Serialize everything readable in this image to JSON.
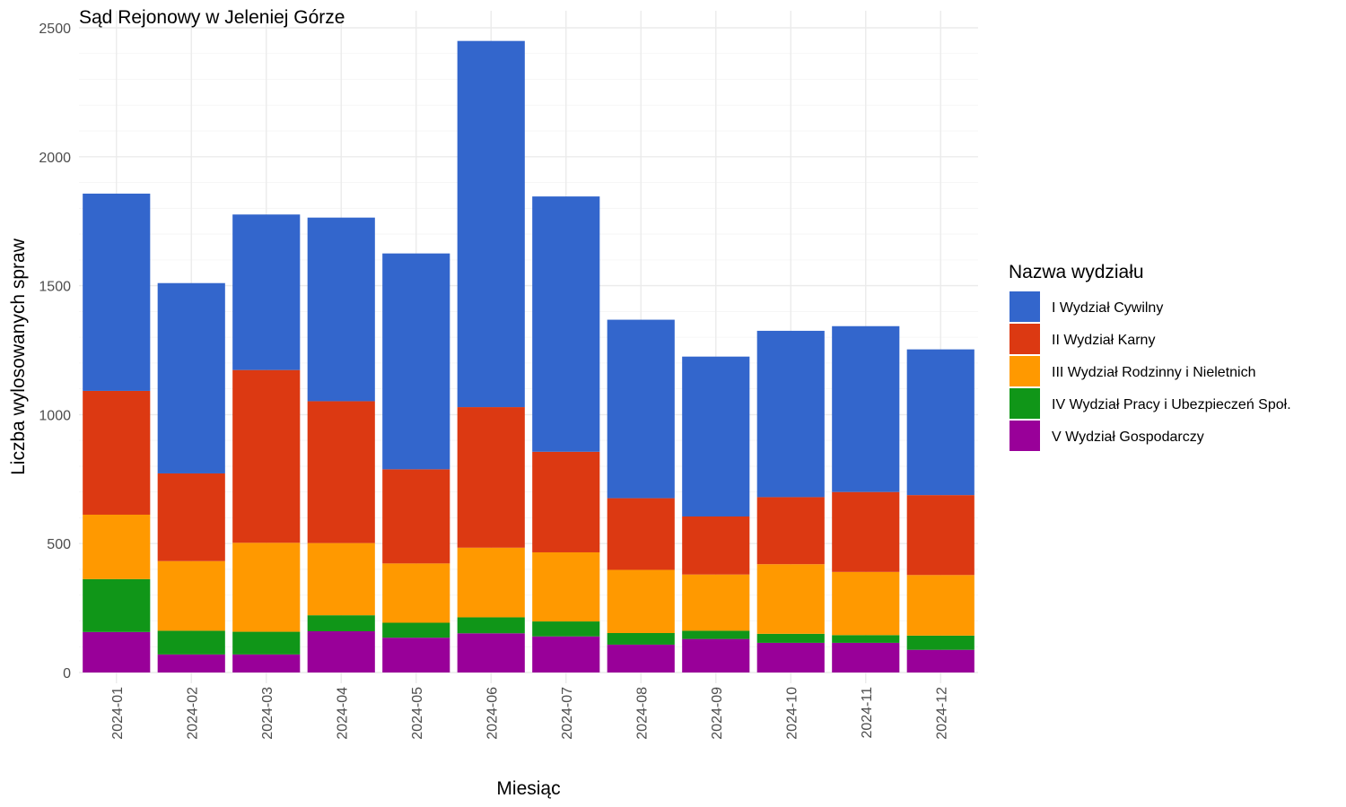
{
  "chart_data": {
    "type": "bar",
    "stacked": true,
    "title": "Sąd Rejonowy w Jeleniej Górze",
    "xlabel": "Miesiąc",
    "ylabel": "Liczba wylosowanych spraw",
    "ylim": [
      0,
      2500
    ],
    "yticks": [
      "0",
      "500",
      "1000",
      "1500",
      "2000",
      "2500"
    ],
    "grid": true,
    "legend_position": "right",
    "legend_title": "Nazwa wydziału",
    "categories": [
      "2024-01",
      "2024-02",
      "2024-03",
      "2024-04",
      "2024-05",
      "2024-06",
      "2024-07",
      "2024-08",
      "2024-09",
      "2024-10",
      "2024-11",
      "2024-12"
    ],
    "series": [
      {
        "name": "I Wydział Cywilny",
        "color": "#3366CC",
        "values": [
          765,
          738,
          603,
          712,
          837,
          1420,
          990,
          692,
          620,
          645,
          643,
          565
        ]
      },
      {
        "name": "II Wydział Karny",
        "color": "#DC3912",
        "values": [
          480,
          340,
          670,
          550,
          365,
          545,
          390,
          278,
          225,
          260,
          310,
          310
        ]
      },
      {
        "name": "III Wydział Rodzinny i Nieletnich",
        "color": "#FF9900",
        "values": [
          250,
          270,
          345,
          280,
          230,
          270,
          268,
          245,
          218,
          270,
          245,
          235
        ]
      },
      {
        "name": "IV Wydział Pracy i Ubezpieczeń Społ.",
        "color": "#109618",
        "values": [
          205,
          92,
          88,
          62,
          58,
          62,
          58,
          45,
          32,
          35,
          30,
          55
        ]
      },
      {
        "name": "V Wydział Gospodarczy",
        "color": "#990099",
        "values": [
          157,
          70,
          70,
          160,
          135,
          152,
          140,
          108,
          130,
          115,
          115,
          88
        ]
      }
    ]
  }
}
